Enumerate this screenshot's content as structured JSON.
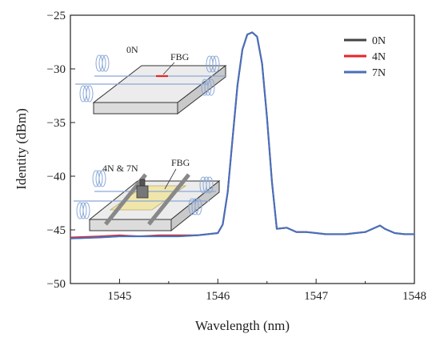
{
  "chart_data": {
    "type": "line",
    "title": "",
    "xlabel": "Wavelength (nm)",
    "ylabel": "Identity (dBm)",
    "xlim": [
      1544.5,
      1548
    ],
    "ylim": [
      -50,
      -25
    ],
    "xticks": [
      1545,
      1546,
      1547,
      1548
    ],
    "yticks": [
      -25,
      -30,
      -35,
      -40,
      -45,
      -50
    ],
    "x_tick_labels": [
      "1545",
      "1546",
      "1547",
      "1548"
    ],
    "y_tick_labels": [
      "−25",
      "−30",
      "−35",
      "−40",
      "−45",
      "−50"
    ],
    "grid": false,
    "legend_position": "top-right",
    "series": [
      {
        "name": "0N",
        "color": "#444444",
        "x": [
          1544.5,
          1544.8,
          1545.0,
          1545.2,
          1545.4,
          1545.6,
          1545.8,
          1546.0,
          1546.05,
          1546.1,
          1546.15,
          1546.2,
          1546.25,
          1546.3,
          1546.35,
          1546.4,
          1546.45,
          1546.5,
          1546.55,
          1546.6,
          1546.7,
          1546.8,
          1546.9,
          1547.0,
          1547.1,
          1547.2,
          1547.3,
          1547.4,
          1547.5,
          1547.6,
          1547.65,
          1547.7,
          1547.8,
          1547.9,
          1548.0
        ],
        "y": [
          -45.8,
          -45.7,
          -45.6,
          -45.6,
          -45.6,
          -45.6,
          -45.5,
          -45.3,
          -44.5,
          -41.5,
          -36.5,
          -31.5,
          -28.2,
          -26.8,
          -26.6,
          -27.0,
          -29.5,
          -34.5,
          -40.5,
          -44.9,
          -44.8,
          -45.2,
          -45.2,
          -45.3,
          -45.4,
          -45.4,
          -45.4,
          -45.3,
          -45.2,
          -44.8,
          -44.6,
          -44.9,
          -45.3,
          -45.4,
          -45.4
        ]
      },
      {
        "name": "4N",
        "color": "#e8232a",
        "x": [
          1544.5,
          1544.8,
          1545.0,
          1545.2,
          1545.4,
          1545.6,
          1545.8,
          1546.0,
          1546.05,
          1546.1,
          1546.15,
          1546.2,
          1546.25,
          1546.3,
          1546.35,
          1546.4,
          1546.45,
          1546.5,
          1546.55,
          1546.6,
          1546.7,
          1546.8,
          1546.9,
          1547.0,
          1547.1,
          1547.2,
          1547.3,
          1547.4,
          1547.5,
          1547.6,
          1547.65,
          1547.7,
          1547.8,
          1547.9,
          1548.0
        ],
        "y": [
          -45.7,
          -45.6,
          -45.5,
          -45.6,
          -45.5,
          -45.5,
          -45.5,
          -45.3,
          -44.5,
          -41.5,
          -36.5,
          -31.5,
          -28.2,
          -26.8,
          -26.6,
          -27.0,
          -29.5,
          -34.5,
          -40.5,
          -44.9,
          -44.8,
          -45.2,
          -45.2,
          -45.3,
          -45.4,
          -45.4,
          -45.4,
          -45.3,
          -45.2,
          -44.8,
          -44.6,
          -44.9,
          -45.3,
          -45.4,
          -45.4
        ]
      },
      {
        "name": "7N",
        "color": "#4a6fb8",
        "x": [
          1544.5,
          1544.8,
          1545.0,
          1545.2,
          1545.4,
          1545.6,
          1545.8,
          1546.0,
          1546.05,
          1546.1,
          1546.15,
          1546.2,
          1546.25,
          1546.3,
          1546.35,
          1546.4,
          1546.45,
          1546.5,
          1546.55,
          1546.6,
          1546.7,
          1546.8,
          1546.9,
          1547.0,
          1547.1,
          1547.2,
          1547.3,
          1547.4,
          1547.5,
          1547.6,
          1547.65,
          1547.7,
          1547.8,
          1547.9,
          1548.0
        ],
        "y": [
          -45.8,
          -45.7,
          -45.6,
          -45.6,
          -45.6,
          -45.6,
          -45.5,
          -45.3,
          -44.5,
          -41.5,
          -36.5,
          -31.5,
          -28.2,
          -26.8,
          -26.6,
          -27.0,
          -29.5,
          -34.5,
          -40.5,
          -44.9,
          -44.8,
          -45.2,
          -45.2,
          -45.3,
          -45.4,
          -45.4,
          -45.4,
          -45.3,
          -45.2,
          -44.8,
          -44.6,
          -44.9,
          -45.3,
          -45.4,
          -45.4
        ]
      }
    ],
    "insets": {
      "top": {
        "load_label": "0N",
        "sensor_label": "FBG"
      },
      "bottom": {
        "load_label": "4N & 7N",
        "sensor_label": "FBG"
      }
    }
  }
}
